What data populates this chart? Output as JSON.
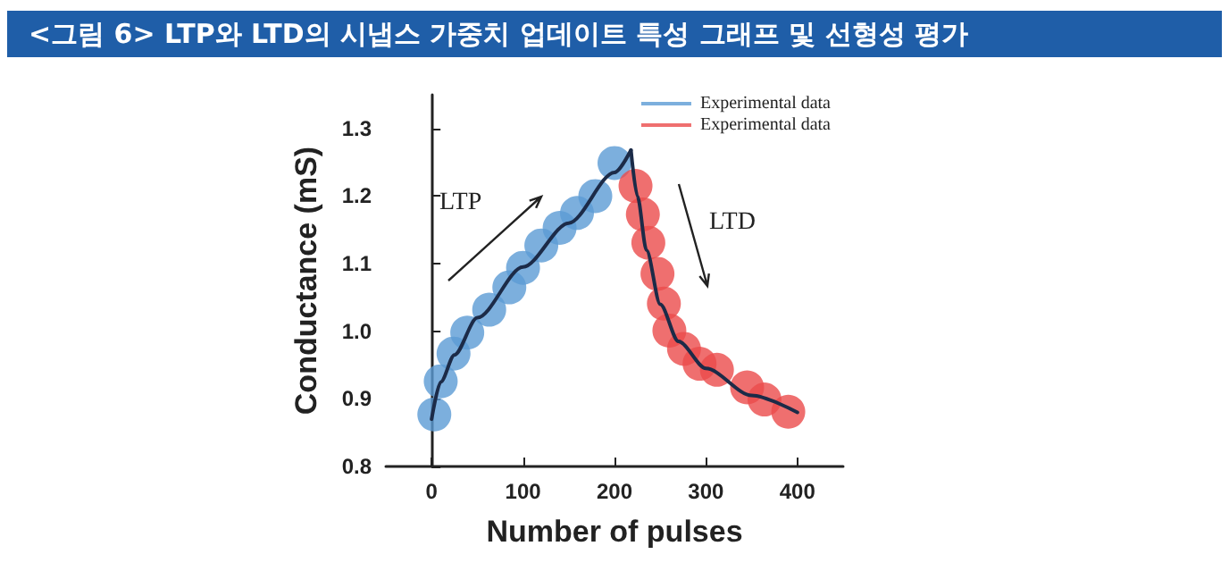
{
  "chart_data": {
    "type": "scatter",
    "title": "<그림 6> LTP와 LTD의 시냅스 가중치 업데이트 특성 그래프 및 선형성 평가",
    "xlabel": "Number of pulses",
    "ylabel": "Conductance (mS)",
    "annotations": [
      "LTP",
      "LTD"
    ],
    "xlim": [
      -50,
      450
    ],
    "ylim": [
      0.8,
      1.35
    ],
    "xticks": [
      0,
      100,
      200,
      300,
      400
    ],
    "yticks": [
      0.8,
      0.9,
      {
        "value": 1,
        "label": "1.0"
      },
      1.1,
      1.2,
      1.3
    ],
    "legend": "top right",
    "marker": "circle",
    "series": [
      {
        "name": "Experimental data",
        "color": "#5b9bd5",
        "x": [
          3,
          10,
          24,
          39,
          63,
          85,
          100,
          120,
          140,
          159,
          179,
          200
        ],
        "values": [
          0.877,
          0.926,
          0.967,
          0.998,
          1.032,
          1.065,
          1.094,
          1.127,
          1.153,
          1.175,
          1.2,
          1.249
        ]
      },
      {
        "name": "Experimental data",
        "color": "#eb4b4b",
        "x": [
          223,
          231,
          237,
          247,
          254,
          260,
          276,
          293,
          312,
          345,
          364,
          390
        ],
        "values": [
          1.215,
          1.173,
          1.131,
          1.085,
          1.041,
          1.001,
          0.974,
          0.952,
          0.943,
          0.917,
          0.899,
          0.881
        ]
      },
      {
        "type": "line",
        "color": "#1c2b48",
        "line_style": "solid",
        "marker": "none",
        "x": [
          0,
          10,
          25,
          50,
          100,
          150,
          200,
          218
        ],
        "values": [
          0.87,
          0.925,
          0.965,
          1.02,
          1.095,
          1.16,
          1.235,
          1.268
        ]
      },
      {
        "type": "line",
        "color": "#1c2b48",
        "line_style": "solid",
        "marker": "none",
        "x": [
          218,
          225,
          235,
          250,
          270,
          300,
          350,
          400
        ],
        "values": [
          1.268,
          1.2,
          1.12,
          1.04,
          0.985,
          0.945,
          0.905,
          0.88
        ]
      }
    ]
  }
}
